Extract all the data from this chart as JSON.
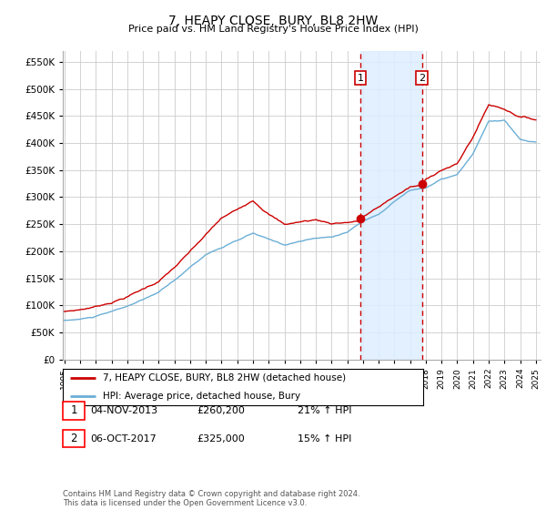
{
  "title": "7, HEAPY CLOSE, BURY, BL8 2HW",
  "subtitle": "Price paid vs. HM Land Registry's House Price Index (HPI)",
  "hpi_label": "HPI: Average price, detached house, Bury",
  "property_label": "7, HEAPY CLOSE, BURY, BL8 2HW (detached house)",
  "footer": "Contains HM Land Registry data © Crown copyright and database right 2024.\nThis data is licensed under the Open Government Licence v3.0.",
  "transaction1_label": "1",
  "transaction1_date": "04-NOV-2013",
  "transaction1_price": "£260,200",
  "transaction1_hpi": "21% ↑ HPI",
  "transaction2_label": "2",
  "transaction2_date": "06-OCT-2017",
  "transaction2_price": "£325,000",
  "transaction2_hpi": "15% ↑ HPI",
  "transaction1_x": 2013.833,
  "transaction2_x": 2017.75,
  "transaction1_y": 260200,
  "transaction2_y": 325000,
  "hpi_color": "#6baed6",
  "property_color": "#cc0000",
  "vline_color": "#cc0000",
  "highlight_color": "#ddeeff",
  "ylim": [
    0,
    570000
  ],
  "yticks": [
    0,
    50000,
    100000,
    150000,
    200000,
    250000,
    300000,
    350000,
    400000,
    450000,
    500000,
    550000
  ],
  "xmin": 1994.9,
  "xmax": 2025.3,
  "background_color": "#ffffff",
  "plot_bg_color": "#ffffff",
  "grid_color": "#cccccc"
}
